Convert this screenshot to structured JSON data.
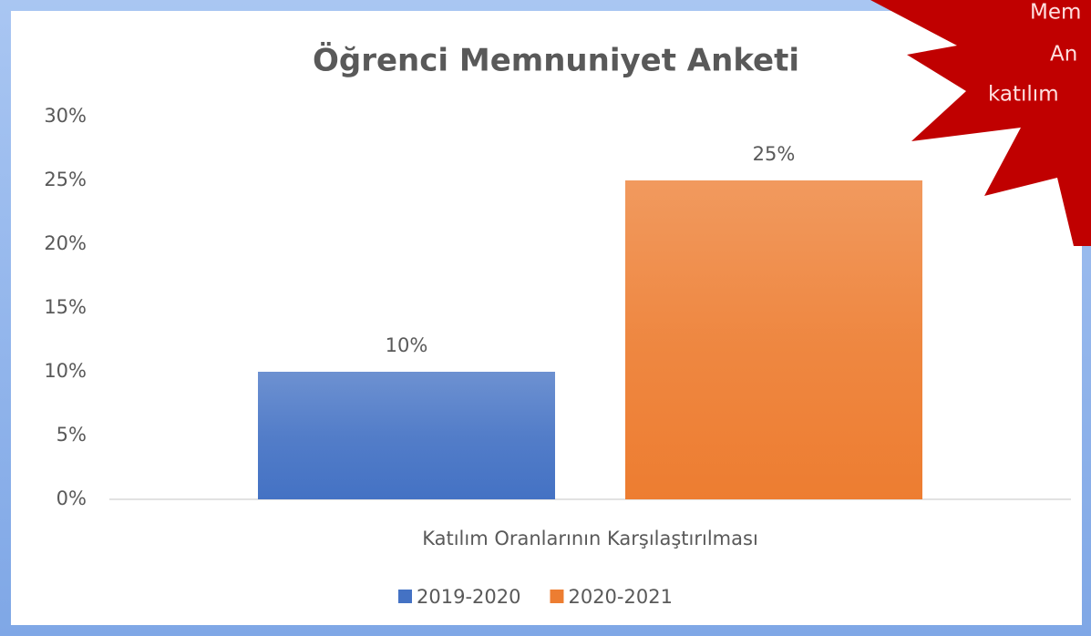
{
  "chart_data": {
    "type": "bar",
    "title": "Öğrenci Memnuniyet Anketi",
    "categories": [
      "Katılım Oranlarının Karşılaştırılması"
    ],
    "series": [
      {
        "name": "2019-2020",
        "color": "#4472c4",
        "values": [
          10
        ],
        "value_labels": [
          "10%"
        ]
      },
      {
        "name": "2020-2021",
        "color": "#ed7d31",
        "values": [
          25
        ],
        "value_labels": [
          "25%"
        ]
      }
    ],
    "ylim": [
      0,
      30
    ],
    "yticks": [
      {
        "value": 0,
        "label": "0%"
      },
      {
        "value": 5,
        "label": "5%"
      },
      {
        "value": 10,
        "label": "10%"
      },
      {
        "value": 15,
        "label": "15%"
      },
      {
        "value": 20,
        "label": "20%"
      },
      {
        "value": 25,
        "label": "25%"
      },
      {
        "value": 30,
        "label": "30%"
      }
    ],
    "grid": false,
    "legend": "bottom",
    "annotations": [
      "Mem",
      "An",
      "katılım"
    ]
  }
}
